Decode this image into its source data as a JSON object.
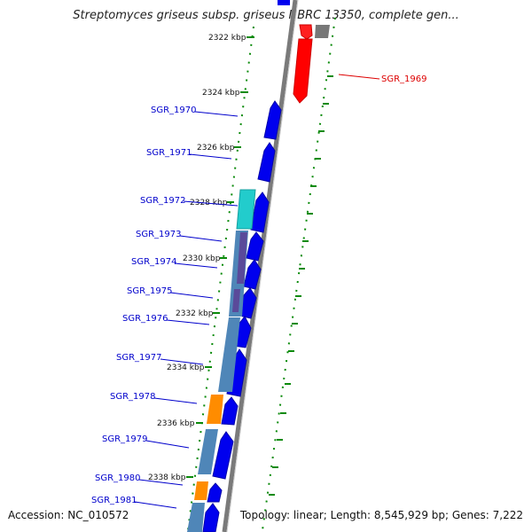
{
  "title": "Streptomyces griseus subsp. griseus NBRC 13350, complete gen...",
  "accession": "Accession: NC_010572",
  "summary": "Topology: linear; Length: 8,545,929 bp; Genes: 7,222",
  "ticks": [
    "2322 kbp",
    "2324 kbp",
    "2326 kbp",
    "2328 kbp",
    "2330 kbp",
    "2332 kbp",
    "2334 kbp",
    "2336 kbp",
    "2338 kbp"
  ],
  "genes": [
    "SGR_1969",
    "SGR_1970",
    "SGR_1971",
    "SGR_1972",
    "SGR_1973",
    "SGR_1974",
    "SGR_1975",
    "SGR_1976",
    "SGR_1977",
    "SGR_1978",
    "SGR_1979",
    "SGR_1980",
    "SGR_1981"
  ],
  "colors": {
    "forward": "#0000ee",
    "reverse": "#ff0000",
    "label_forward": "#0000cc",
    "label_reverse": "#dd0000",
    "cyan": "#22cccc",
    "steel": "#4f86b8",
    "orange": "#ff8c00",
    "tick": "#008000",
    "backbone": "#7a7a7a"
  }
}
